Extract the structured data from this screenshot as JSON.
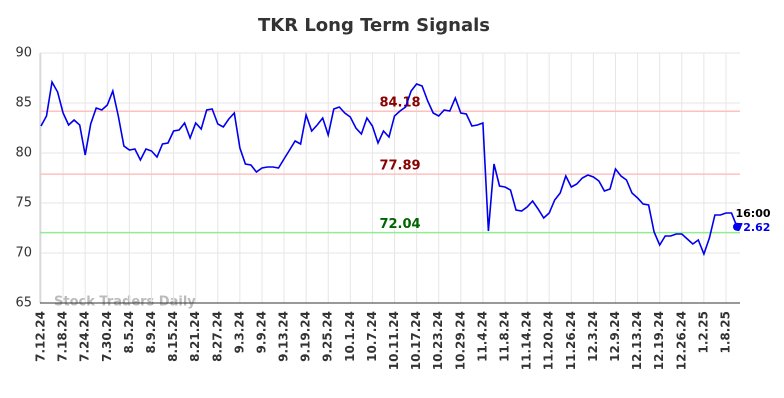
{
  "chart_data": {
    "type": "line",
    "title": "TKR Long Term Signals",
    "watermark": "Stock Traders Daily",
    "categories": [
      "7.12.24",
      null,
      null,
      null,
      "7.18.24",
      null,
      null,
      null,
      "7.24.24",
      null,
      null,
      null,
      "7.30.24",
      null,
      null,
      null,
      "8.5.24",
      null,
      null,
      null,
      "8.9.24",
      null,
      null,
      null,
      "8.15.24",
      null,
      null,
      null,
      "8.21.24",
      null,
      null,
      null,
      "8.27.24",
      null,
      null,
      null,
      "9.3.24",
      null,
      null,
      null,
      "9.9.24",
      null,
      null,
      null,
      "9.13.24",
      null,
      null,
      null,
      "9.19.24",
      null,
      null,
      null,
      "9.25.24",
      null,
      null,
      null,
      "10.1.24",
      null,
      null,
      null,
      "10.7.24",
      null,
      null,
      null,
      "10.11.24",
      null,
      null,
      null,
      "10.17.24",
      null,
      null,
      null,
      "10.23.24",
      null,
      null,
      null,
      "10.29.24",
      null,
      null,
      null,
      "11.4.24",
      null,
      null,
      null,
      "11.8.24",
      null,
      null,
      null,
      "11.14.24",
      null,
      null,
      null,
      "11.20.24",
      null,
      null,
      null,
      "11.26.24",
      null,
      null,
      null,
      "12.3.24",
      null,
      null,
      null,
      "12.9.24",
      null,
      null,
      null,
      "12.13.24",
      null,
      null,
      null,
      "12.19.24",
      null,
      null,
      null,
      "12.26.24",
      null,
      null,
      null,
      "1.2.25",
      null,
      null,
      null,
      "1.8.25",
      null,
      null
    ],
    "values": [
      82.7,
      83.7,
      87.1,
      86.1,
      84.0,
      82.8,
      83.3,
      82.8,
      79.8,
      82.9,
      84.5,
      84.3,
      84.8,
      86.2,
      83.7,
      80.7,
      80.3,
      80.4,
      79.3,
      80.4,
      80.2,
      79.6,
      80.9,
      81.0,
      82.2,
      82.3,
      83.0,
      81.5,
      83.0,
      82.4,
      84.3,
      84.4,
      82.9,
      82.6,
      83.4,
      84.0,
      80.5,
      78.9,
      78.8,
      78.1,
      78.5,
      78.6,
      78.6,
      78.5,
      79.4,
      80.3,
      81.2,
      80.9,
      83.8,
      82.2,
      82.8,
      83.5,
      81.8,
      84.4,
      84.6,
      84.0,
      83.6,
      82.5,
      81.9,
      83.5,
      82.7,
      81.0,
      82.2,
      81.6,
      83.7,
      84.2,
      84.6,
      86.2,
      86.9,
      86.7,
      85.2,
      84.0,
      83.7,
      84.3,
      84.2,
      85.5,
      84.0,
      83.9,
      82.7,
      82.8,
      83.0,
      72.2,
      78.9,
      76.7,
      76.6,
      76.3,
      74.3,
      74.2,
      74.6,
      75.2,
      74.4,
      73.5,
      74.0,
      75.3,
      76.0,
      77.7,
      76.6,
      76.9,
      77.5,
      77.8,
      77.6,
      77.2,
      76.2,
      76.4,
      78.4,
      77.7,
      77.3,
      76.0,
      75.5,
      74.9,
      74.8,
      72.1,
      70.8,
      71.7,
      71.7,
      71.9,
      71.9,
      71.4,
      70.9,
      71.3,
      69.9,
      71.5,
      73.8,
      73.8,
      74.0,
      74.0,
      72.62
    ],
    "color": "#0000ee",
    "last_time": "16:00",
    "hlines": [
      {
        "value": 84.18,
        "color": "#ffc0c0",
        "label_color": "#8b0000"
      },
      {
        "value": 77.89,
        "color": "#ffc0c0",
        "label_color": "#8b0000"
      },
      {
        "value": 72.04,
        "color": "#90ee90",
        "label_color": "#006400"
      }
    ],
    "ylim": [
      65,
      90
    ],
    "yticks": [
      65,
      70,
      75,
      80,
      85,
      90
    ],
    "grid": true
  }
}
